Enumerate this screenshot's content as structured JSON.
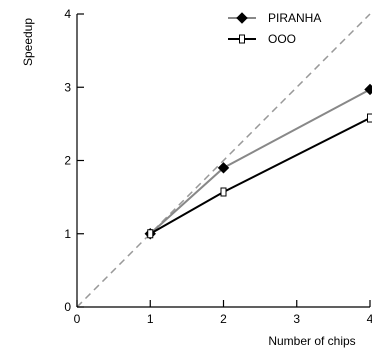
{
  "chart_data": {
    "type": "line",
    "title": "",
    "xlabel": "Number of chips",
    "ylabel": "Speedup",
    "xlim": [
      0,
      4
    ],
    "ylim": [
      0,
      4
    ],
    "x_ticks": [
      "0",
      "1",
      "2",
      "3",
      "4"
    ],
    "y_ticks": [
      "0",
      "1",
      "2",
      "3",
      "4"
    ],
    "grid": false,
    "legend_position": "top-right",
    "reference_line": {
      "style": "dashed",
      "color": "#999999",
      "x": [
        0,
        4
      ],
      "y": [
        0,
        4
      ]
    },
    "series": [
      {
        "name": "PIRANHA",
        "marker": "diamond-filled",
        "color": "#888888",
        "x": [
          1,
          2,
          4
        ],
        "y": [
          1.0,
          1.9,
          2.97
        ]
      },
      {
        "name": "OOO",
        "marker": "square-open",
        "color": "#000000",
        "x": [
          1,
          2,
          4
        ],
        "y": [
          1.0,
          1.57,
          2.58
        ]
      }
    ]
  }
}
